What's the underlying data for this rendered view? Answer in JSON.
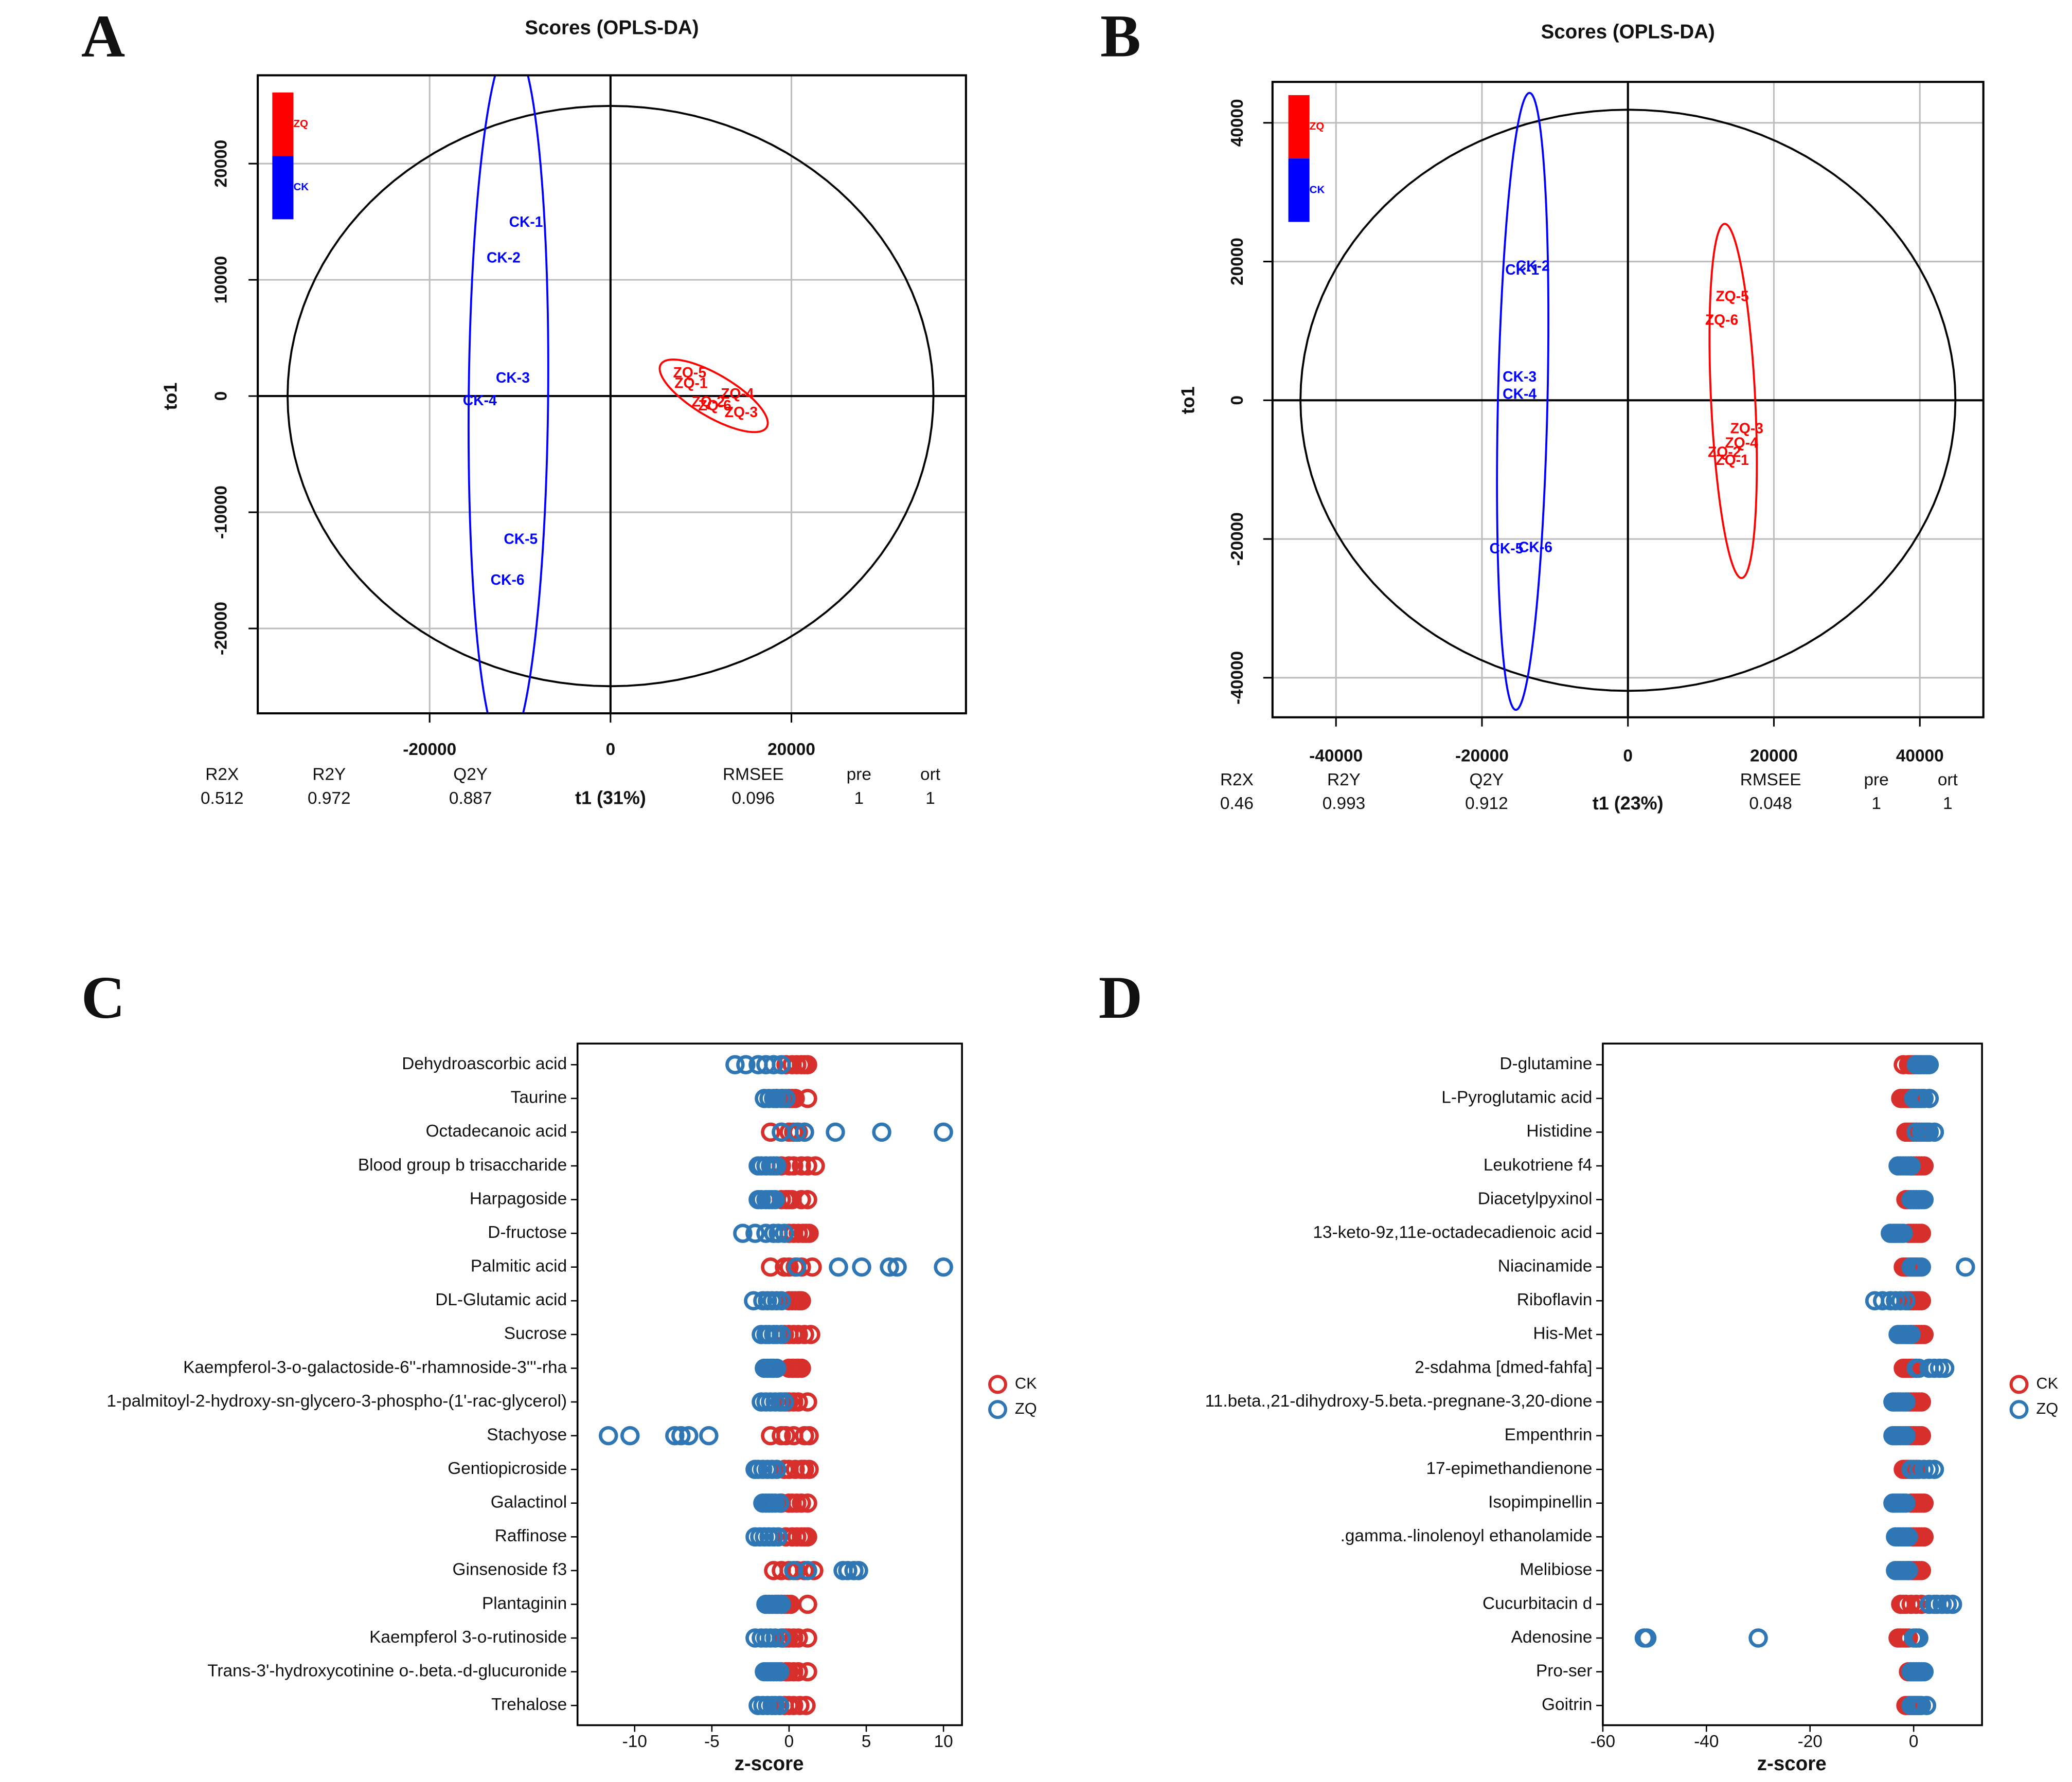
{
  "chart_data": [
    {
      "type": "scatter",
      "label": "A",
      "title": "Scores (OPLS-DA)",
      "x_label": "t1 (31%)",
      "y_label": "to1",
      "xlim": [
        -39000,
        39300
      ],
      "ylim": [
        -27300,
        27600
      ],
      "xticks": [
        -20000,
        0,
        20000
      ],
      "yticks": [
        -20000,
        -10000,
        0,
        10000,
        20000
      ],
      "grid": true,
      "series": [
        {
          "name": "ZQ",
          "color": "#ff0000",
          "labels": [
            "ZQ-1",
            "ZQ-2",
            "ZQ-3",
            "ZQ-4",
            "ZQ-5",
            "ZQ-6"
          ],
          "x": [
            8905,
            10803,
            14453,
            14015,
            8759,
            11533
          ],
          "y": [
            1023,
            -568,
            -1477,
            114,
            1932,
            -909
          ]
        },
        {
          "name": "CK",
          "color": "#0000ff",
          "labels": [
            "CK-1",
            "CK-2",
            "CK-3",
            "CK-4",
            "CK-5",
            "CK-6"
          ],
          "x": [
            -9343,
            -11825,
            -10800,
            -14450,
            -9927,
            -11386
          ],
          "y": [
            14886,
            11818,
            1477,
            -455,
            -12386,
            -15909
          ]
        }
      ],
      "stats": [
        {
          "name": "R2X",
          "value": 0.512
        },
        {
          "name": "R2Y",
          "value": 0.972
        },
        {
          "name": "Q2Y",
          "value": 0.887
        },
        {
          "name": "RMSEE",
          "value": 0.096
        },
        {
          "name": "pre",
          "value": 1
        },
        {
          "name": "ort",
          "value": 1
        }
      ]
    },
    {
      "type": "scatter",
      "label": "B",
      "title": "Scores (OPLS-DA)",
      "x_label": "t1 (23%)",
      "y_label": "to1",
      "xlim": [
        -48700,
        48700
      ],
      "ylim": [
        -45700,
        45900
      ],
      "xticks": [
        -40000,
        -20000,
        0,
        20000,
        40000
      ],
      "yticks": [
        -40000,
        -20000,
        0,
        20000,
        40000
      ],
      "grid": true,
      "series": [
        {
          "name": "ZQ",
          "color": "#ff0000",
          "labels": [
            "ZQ-1",
            "ZQ-2",
            "ZQ-3",
            "ZQ-4",
            "ZQ-5",
            "ZQ-6"
          ],
          "x": [
            14299,
            13213,
            16290,
            15566,
            14299,
            12851
          ],
          "y": [
            -8762,
            -7619,
            -4190,
            -6286,
            14857,
            11429
          ]
        },
        {
          "name": "CK",
          "color": "#0000ff",
          "labels": [
            "CK-1",
            "CK-2",
            "CK-3",
            "CK-4",
            "CK-5",
            "CK-6"
          ],
          "x": [
            -14480,
            -13032,
            -14842,
            -14842,
            -16652,
            -12670
          ],
          "y": [
            18667,
            19238,
            3238,
            762,
            -21524,
            -21333
          ]
        }
      ],
      "stats": [
        {
          "name": "R2X",
          "value": 0.46
        },
        {
          "name": "R2Y",
          "value": 0.993
        },
        {
          "name": "Q2Y",
          "value": 0.912
        },
        {
          "name": "RMSEE",
          "value": 0.048
        },
        {
          "name": "pre",
          "value": 1
        },
        {
          "name": "ort",
          "value": 1
        }
      ]
    },
    {
      "type": "dot",
      "label": "C",
      "x_label": "z-score",
      "xlim": [
        -13.7,
        11.2
      ],
      "xticks": [
        -10,
        -5,
        0,
        5,
        10
      ],
      "categories": [
        "Dehydroascorbic acid",
        "Taurine",
        "Octadecanoic acid",
        "Blood group b trisaccharide",
        "Harpagoside",
        "D-fructose",
        "Palmitic acid",
        "DL-Glutamic acid",
        "Sucrose",
        "Kaempferol-3-o-galactoside-6''-rhamnoside-3'''-rha",
        "1-palmitoyl-2-hydroxy-sn-glycero-3-phospho-(1'-rac-glycerol)",
        "Stachyose",
        "Gentiopicroside",
        "Galactinol",
        "Raffinose",
        "Ginsenoside f3",
        "Plantaginin",
        "Kaempferol 3-o-rutinoside",
        "Trans-3'-hydroxycotinine o-.beta.-d-glucuronide",
        "Trehalose"
      ],
      "series": [
        {
          "name": "CK",
          "color": "#d7302c",
          "values": [
            [
              -0.2,
              0.2,
              0.5,
              0.8,
              1.0,
              1.2
            ],
            [
              -0.8,
              -0.4,
              0,
              0.2,
              0.4,
              1.2
            ],
            [
              -1.2,
              -0.5,
              0,
              0.3,
              0.6,
              1.0
            ],
            [
              -0.5,
              0,
              0.3,
              0.8,
              1.2,
              1.7
            ],
            [
              -0.5,
              -0.2,
              0,
              0.2,
              0.8,
              1.2
            ],
            [
              0,
              0.3,
              0.6,
              0.9,
              1.1,
              1.3
            ],
            [
              -1.2,
              -0.3,
              0,
              0.4,
              0.8,
              1.5
            ],
            [
              0,
              0.2,
              0.4,
              0.6,
              0.7,
              0.8
            ],
            [
              -0.3,
              0,
              0.3,
              0.6,
              1.0,
              1.4
            ],
            [
              0,
              0.2,
              0.3,
              0.5,
              0.6,
              0.8
            ],
            [
              -0.5,
              -0.2,
              0,
              0.3,
              0.6,
              1.2
            ],
            [
              -1.2,
              -0.5,
              -0.2,
              0.3,
              1.0,
              1.3
            ],
            [
              -0.3,
              0,
              0.4,
              0.8,
              1.0,
              1.3
            ],
            [
              -0.5,
              0,
              0.2,
              0.5,
              0.8,
              1.2
            ],
            [
              -0.2,
              0.2,
              0.5,
              0.8,
              1.0,
              1.2
            ],
            [
              -1.0,
              -0.5,
              0,
              0.5,
              1.0,
              1.6
            ],
            [
              -0.8,
              -0.5,
              -0.3,
              -0.1,
              0.1,
              1.2
            ],
            [
              -0.4,
              -0.2,
              0,
              0.3,
              0.6,
              1.2
            ],
            [
              -0.5,
              -0.2,
              0,
              0.3,
              0.6,
              1.2
            ],
            [
              -0.6,
              -0.3,
              0,
              0.3,
              0.7,
              1.1
            ]
          ]
        },
        {
          "name": "ZQ",
          "color": "#2f77b4",
          "values": [
            [
              -3.5,
              -2.8,
              -2.0,
              -1.5,
              -1.0,
              -0.5
            ],
            [
              -1.6,
              -1.3,
              -1.0,
              -0.8,
              -0.5,
              -0.2
            ],
            [
              -0.5,
              0.5,
              1.0,
              3.0,
              6.0,
              10.0
            ],
            [
              -2.0,
              -1.8,
              -1.5,
              -1.2,
              -1.0,
              -0.8
            ],
            [
              -2.0,
              -1.8,
              -1.5,
              -1.3,
              -1.1,
              -0.9
            ],
            [
              -3.0,
              -2.2,
              -1.5,
              -1.0,
              -0.7,
              -0.3
            ],
            [
              0.5,
              3.2,
              4.7,
              6.5,
              7.0,
              10.0
            ],
            [
              -2.3,
              -1.7,
              -1.4,
              -1.1,
              -0.8,
              -0.5
            ],
            [
              -1.8,
              -1.5,
              -1.3,
              -1.0,
              -0.8,
              -0.5
            ],
            [
              -1.6,
              -1.4,
              -1.2,
              -1.1,
              -1.0,
              -0.8
            ],
            [
              -1.8,
              -1.5,
              -1.2,
              -0.9,
              -0.6,
              -0.3
            ],
            [
              -11.7,
              -10.3,
              -7.4,
              -7.0,
              -6.5,
              -5.2
            ],
            [
              -2.2,
              -2.0,
              -1.7,
              -1.4,
              -1.1,
              -0.8
            ],
            [
              -1.7,
              -1.5,
              -1.3,
              -1.1,
              -0.9,
              -0.6
            ],
            [
              -2.2,
              -1.9,
              -1.6,
              -1.3,
              -1.0,
              -0.7
            ],
            [
              0.3,
              1.2,
              3.5,
              3.8,
              4.2,
              4.5
            ],
            [
              -1.5,
              -1.3,
              -1.1,
              -0.9,
              -0.7,
              -0.5
            ],
            [
              -2.2,
              -1.8,
              -1.5,
              -1.2,
              -0.9,
              -0.5
            ],
            [
              -1.6,
              -1.4,
              -1.2,
              -1.0,
              -0.8,
              -0.6
            ],
            [
              -2.0,
              -1.7,
              -1.4,
              -1.1,
              -0.9,
              -0.6
            ]
          ]
        }
      ]
    },
    {
      "type": "dot",
      "label": "D",
      "x_label": "z-score",
      "xlim": [
        -60,
        13.2
      ],
      "xticks": [
        -60,
        -40,
        -20,
        0
      ],
      "categories": [
        "D-glutamine",
        "L-Pyroglutamic acid",
        "Histidine",
        "Leukotriene f4",
        "Diacetylpyxinol",
        "13-keto-9z,11e-octadecadienoic acid",
        "Niacinamide",
        "Riboflavin",
        "His-Met",
        "2-sdahma [dmed-fahfa]",
        "11.beta.,21-dihydroxy-5.beta.-pregnane-3,20-dione",
        "Empenthrin",
        "17-epimethandienone",
        "Isopimpinellin",
        ".gamma.-linolenoyl ethanolamide",
        "Melibiose",
        "Cucurbitacin d",
        "Adenosine",
        "Pro-ser",
        "Goitrin"
      ],
      "series": [
        {
          "name": "CK",
          "color": "#d7302c",
          "values": [
            [
              -2,
              -1,
              -0.5,
              0,
              0.5,
              1
            ],
            [
              -2.5,
              -2,
              -1.5,
              -1,
              -0.5,
              0
            ],
            [
              -1.5,
              -1,
              -0.5,
              0,
              0.5,
              1
            ],
            [
              -0.5,
              0,
              0.5,
              1,
              1.5,
              2
            ],
            [
              -1.5,
              -1,
              -0.5,
              0,
              0.5,
              1
            ],
            [
              -1,
              -0.5,
              0,
              0.5,
              1,
              1.5
            ],
            [
              -2,
              -1.5,
              -1,
              -0.5,
              0,
              0.5
            ],
            [
              -1,
              -0.5,
              0,
              0.5,
              1,
              1.5
            ],
            [
              -0.5,
              0,
              0.5,
              1,
              1.5,
              2
            ],
            [
              -2,
              -1.5,
              -1,
              -0.5,
              0,
              0.5
            ],
            [
              -1,
              -0.5,
              0,
              0.5,
              1,
              1.5
            ],
            [
              -1,
              -0.5,
              0,
              0.5,
              1,
              1.5
            ],
            [
              -2,
              -1.5,
              -1,
              -0.5,
              0,
              0.5
            ],
            [
              -0.5,
              0,
              0.5,
              1,
              1.5,
              2
            ],
            [
              -0.5,
              0,
              0.5,
              1,
              1.5,
              2
            ],
            [
              -1,
              -0.5,
              0,
              0.5,
              1,
              1.5
            ],
            [
              -2.5,
              -2,
              -1.5,
              -0.5,
              0.5,
              1.5
            ],
            [
              -3,
              -2.5,
              -2,
              -1.5,
              -1,
              0.5
            ],
            [
              -1,
              -0.5,
              0,
              0.5,
              1,
              1.5
            ],
            [
              -1.5,
              -1,
              -0.5,
              0,
              0.5,
              1
            ]
          ]
        },
        {
          "name": "ZQ",
          "color": "#2f77b4",
          "values": [
            [
              0.5,
              1,
              1.5,
              2,
              2.5,
              3
            ],
            [
              0,
              0.5,
              1,
              1.5,
              2,
              3
            ],
            [
              0.5,
              1.5,
              2,
              2.5,
              3,
              4
            ],
            [
              -3,
              -2.5,
              -2,
              -1.5,
              -1,
              -0.5
            ],
            [
              -0.5,
              0,
              0.5,
              1,
              1.5,
              2
            ],
            [
              -4.5,
              -4,
              -3.5,
              -3,
              -2.5,
              -2
            ],
            [
              -0.5,
              0,
              0.5,
              1,
              1.5,
              10
            ],
            [
              -7.5,
              -6,
              -4.5,
              -3.5,
              -2.5,
              -1.5
            ],
            [
              -3,
              -2.5,
              -2,
              -1.5,
              -1,
              -0.5
            ],
            [
              0.5,
              1,
              3,
              4,
              5,
              6
            ],
            [
              -4,
              -3.5,
              -3,
              -2.5,
              -2,
              -1.5
            ],
            [
              -4,
              -3.5,
              -3,
              -2.5,
              -2,
              -1.5
            ],
            [
              -0.5,
              0,
              1,
              2,
              3,
              4
            ],
            [
              -4,
              -3.5,
              -3,
              -2.5,
              -2,
              -1.5
            ],
            [
              -3.5,
              -3,
              -2.5,
              -2,
              -1.5,
              -1
            ],
            [
              -3.5,
              -3,
              -2.5,
              -2,
              -1.5,
              -1
            ],
            [
              3,
              4,
              4.5,
              5.5,
              6.5,
              7.5
            ],
            [
              -52,
              -51.5,
              -30,
              0,
              0.5,
              1
            ],
            [
              -0.5,
              0,
              0.5,
              1,
              1.5,
              2
            ],
            [
              -0.5,
              0,
              0.5,
              1,
              1.5,
              2.5
            ]
          ]
        }
      ]
    }
  ]
}
